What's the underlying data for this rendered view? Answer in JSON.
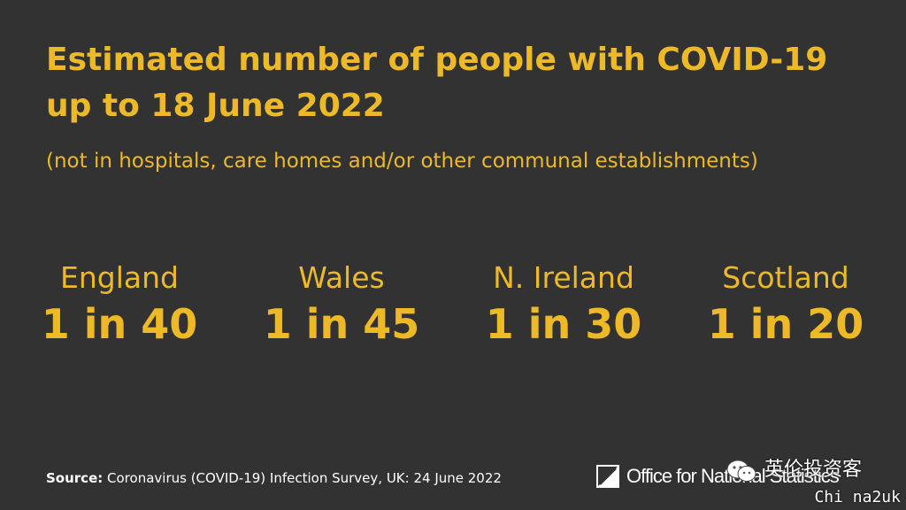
{
  "title_line1": "Estimated number of people with COVID-19",
  "title_line2": "up to 18 June 2022",
  "subtitle": "(not in hospitals, care homes and/or other communal establishments)",
  "stats": [
    {
      "name": "England",
      "value": "1 in 40"
    },
    {
      "name": "Wales",
      "value": "1 in 45"
    },
    {
      "name": "N. Ireland",
      "value": "1 in 30"
    },
    {
      "name": "Scotland",
      "value": "1 in 20"
    }
  ],
  "source": {
    "label": "Source:",
    "text": "Coronavirus (COVID-19) Infection Survey, UK: 24 June 2022"
  },
  "logo": {
    "text": "Office for National Statistics",
    "icon": "ons-logo-icon"
  },
  "watermark": {
    "icon": "wechat-icon",
    "cn": "英伦投资客",
    "en": "Chi na2uk"
  },
  "colors": {
    "background": "#323232",
    "accent": "#EDB926",
    "text_light": "#ffffff"
  }
}
